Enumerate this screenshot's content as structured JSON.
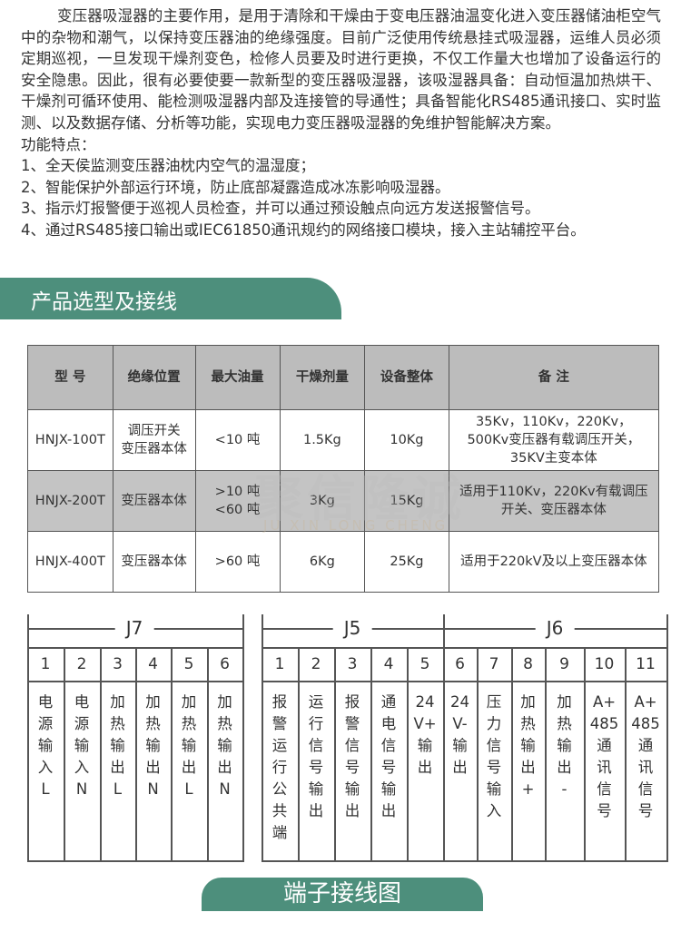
{
  "intro": {
    "paragraph": "变压器吸湿器的主要作用，是用于清除和干燥由于变电压器油温变化进入变压器储油柜空气中的杂物和潮气，以保持变压器油的绝缘强度。目前广泛使用传统悬挂式吸湿器，运维人员必须定期巡视，一旦发现干燥剂变色，检修人员要及时进行更换，不仅工作量大也增加了设备运行的安全隐患。因此，很有必要使要一款新型的变压器吸湿器，该吸湿器具备：自动恒温加热烘干、干燥剂可循环使用、能检测吸湿器内部及连接管的导通性；具备智能化RS485通讯接口、实时监测、以及数据存储、分析等功能，实现电力变压器吸湿器的免维护智能解决方案。",
    "features_title": "功能特点：",
    "features": [
      "1、全天侯监测变压器油枕内空气的温湿度；",
      "2、智能保护外部运行环境，防止底部凝露造成冰冻影响吸湿器。",
      "3、指示灯报警便于巡视人员检查，并可以通过预设触点向远方发送报警信号。",
      "4、通过RS485接口输出或IEC61850通讯规约的网络接口模块，接入主站辅控平台。"
    ]
  },
  "section_title": "产品选型及接线",
  "table": {
    "headers": [
      "型 号",
      "绝缘位置",
      "最大油量",
      "干燥剂量",
      "设备整体",
      "备 注"
    ],
    "rows": [
      [
        "HNJX-100T",
        "调压开关\n变压器本体",
        "<10 吨",
        "1.5Kg",
        "10Kg",
        "35Kv，110Kv，220Kv，\n500Kv变压器有载调压开关，\n35KV主变本体"
      ],
      [
        "HNJX-200T",
        "变压器本体",
        ">10 吨\n<60 吨",
        "3Kg",
        "15Kg",
        "适用于110Kv，220Kv有载调压\n开关、变压器本体"
      ],
      [
        "HNJX-400T",
        "变压器本体",
        ">60 吨",
        "6Kg",
        "25Kg",
        "适用于220kV及以上变压器本体"
      ]
    ]
  },
  "watermark": {
    "text": "聚信隆诚",
    "subtext": "JU XIN LONG CHENG"
  },
  "terminals": {
    "groups": [
      "J7",
      "J5",
      "J6"
    ],
    "j7": [
      {
        "num": "1",
        "desc": "电\n源\n输\n入\nL"
      },
      {
        "num": "2",
        "desc": "电\n源\n输\n入\nN"
      },
      {
        "num": "3",
        "desc": "加\n热\n输\n出\nL"
      },
      {
        "num": "4",
        "desc": "加\n热\n输\n出\nN"
      },
      {
        "num": "5",
        "desc": "加\n热\n输\n出\nL"
      },
      {
        "num": "6",
        "desc": "加\n热\n输\n出\nN"
      }
    ],
    "j5j6": [
      {
        "num": "1",
        "desc": "报\n警\n运\n行\n公\n共\n端"
      },
      {
        "num": "2",
        "desc": "运\n行\n信\n号\n输\n出"
      },
      {
        "num": "3",
        "desc": "报\n警\n信\n号\n输\n出"
      },
      {
        "num": "4",
        "desc": "通\n电\n信\n号\n输\n出"
      },
      {
        "num": "5",
        "desc": "24\nV+\n输\n出"
      },
      {
        "num": "6",
        "desc": "24\nV-\n输\n出"
      },
      {
        "num": "7",
        "desc": "压\n力\n信\n号\n输\n入"
      },
      {
        "num": "8",
        "desc": "加\n热\n输\n出\n+"
      },
      {
        "num": "9",
        "desc": "加\n热\n输\n出\n-"
      },
      {
        "num": "10",
        "desc": "A+\n485\n通\n讯\n信\n号"
      },
      {
        "num": "11",
        "desc": "A+\n485\n通\n讯\n信\n号"
      }
    ]
  },
  "diagram_title": "端子接线图",
  "colors": {
    "accent": "#4d8f7c",
    "table_gray": "#bcbcbc"
  }
}
